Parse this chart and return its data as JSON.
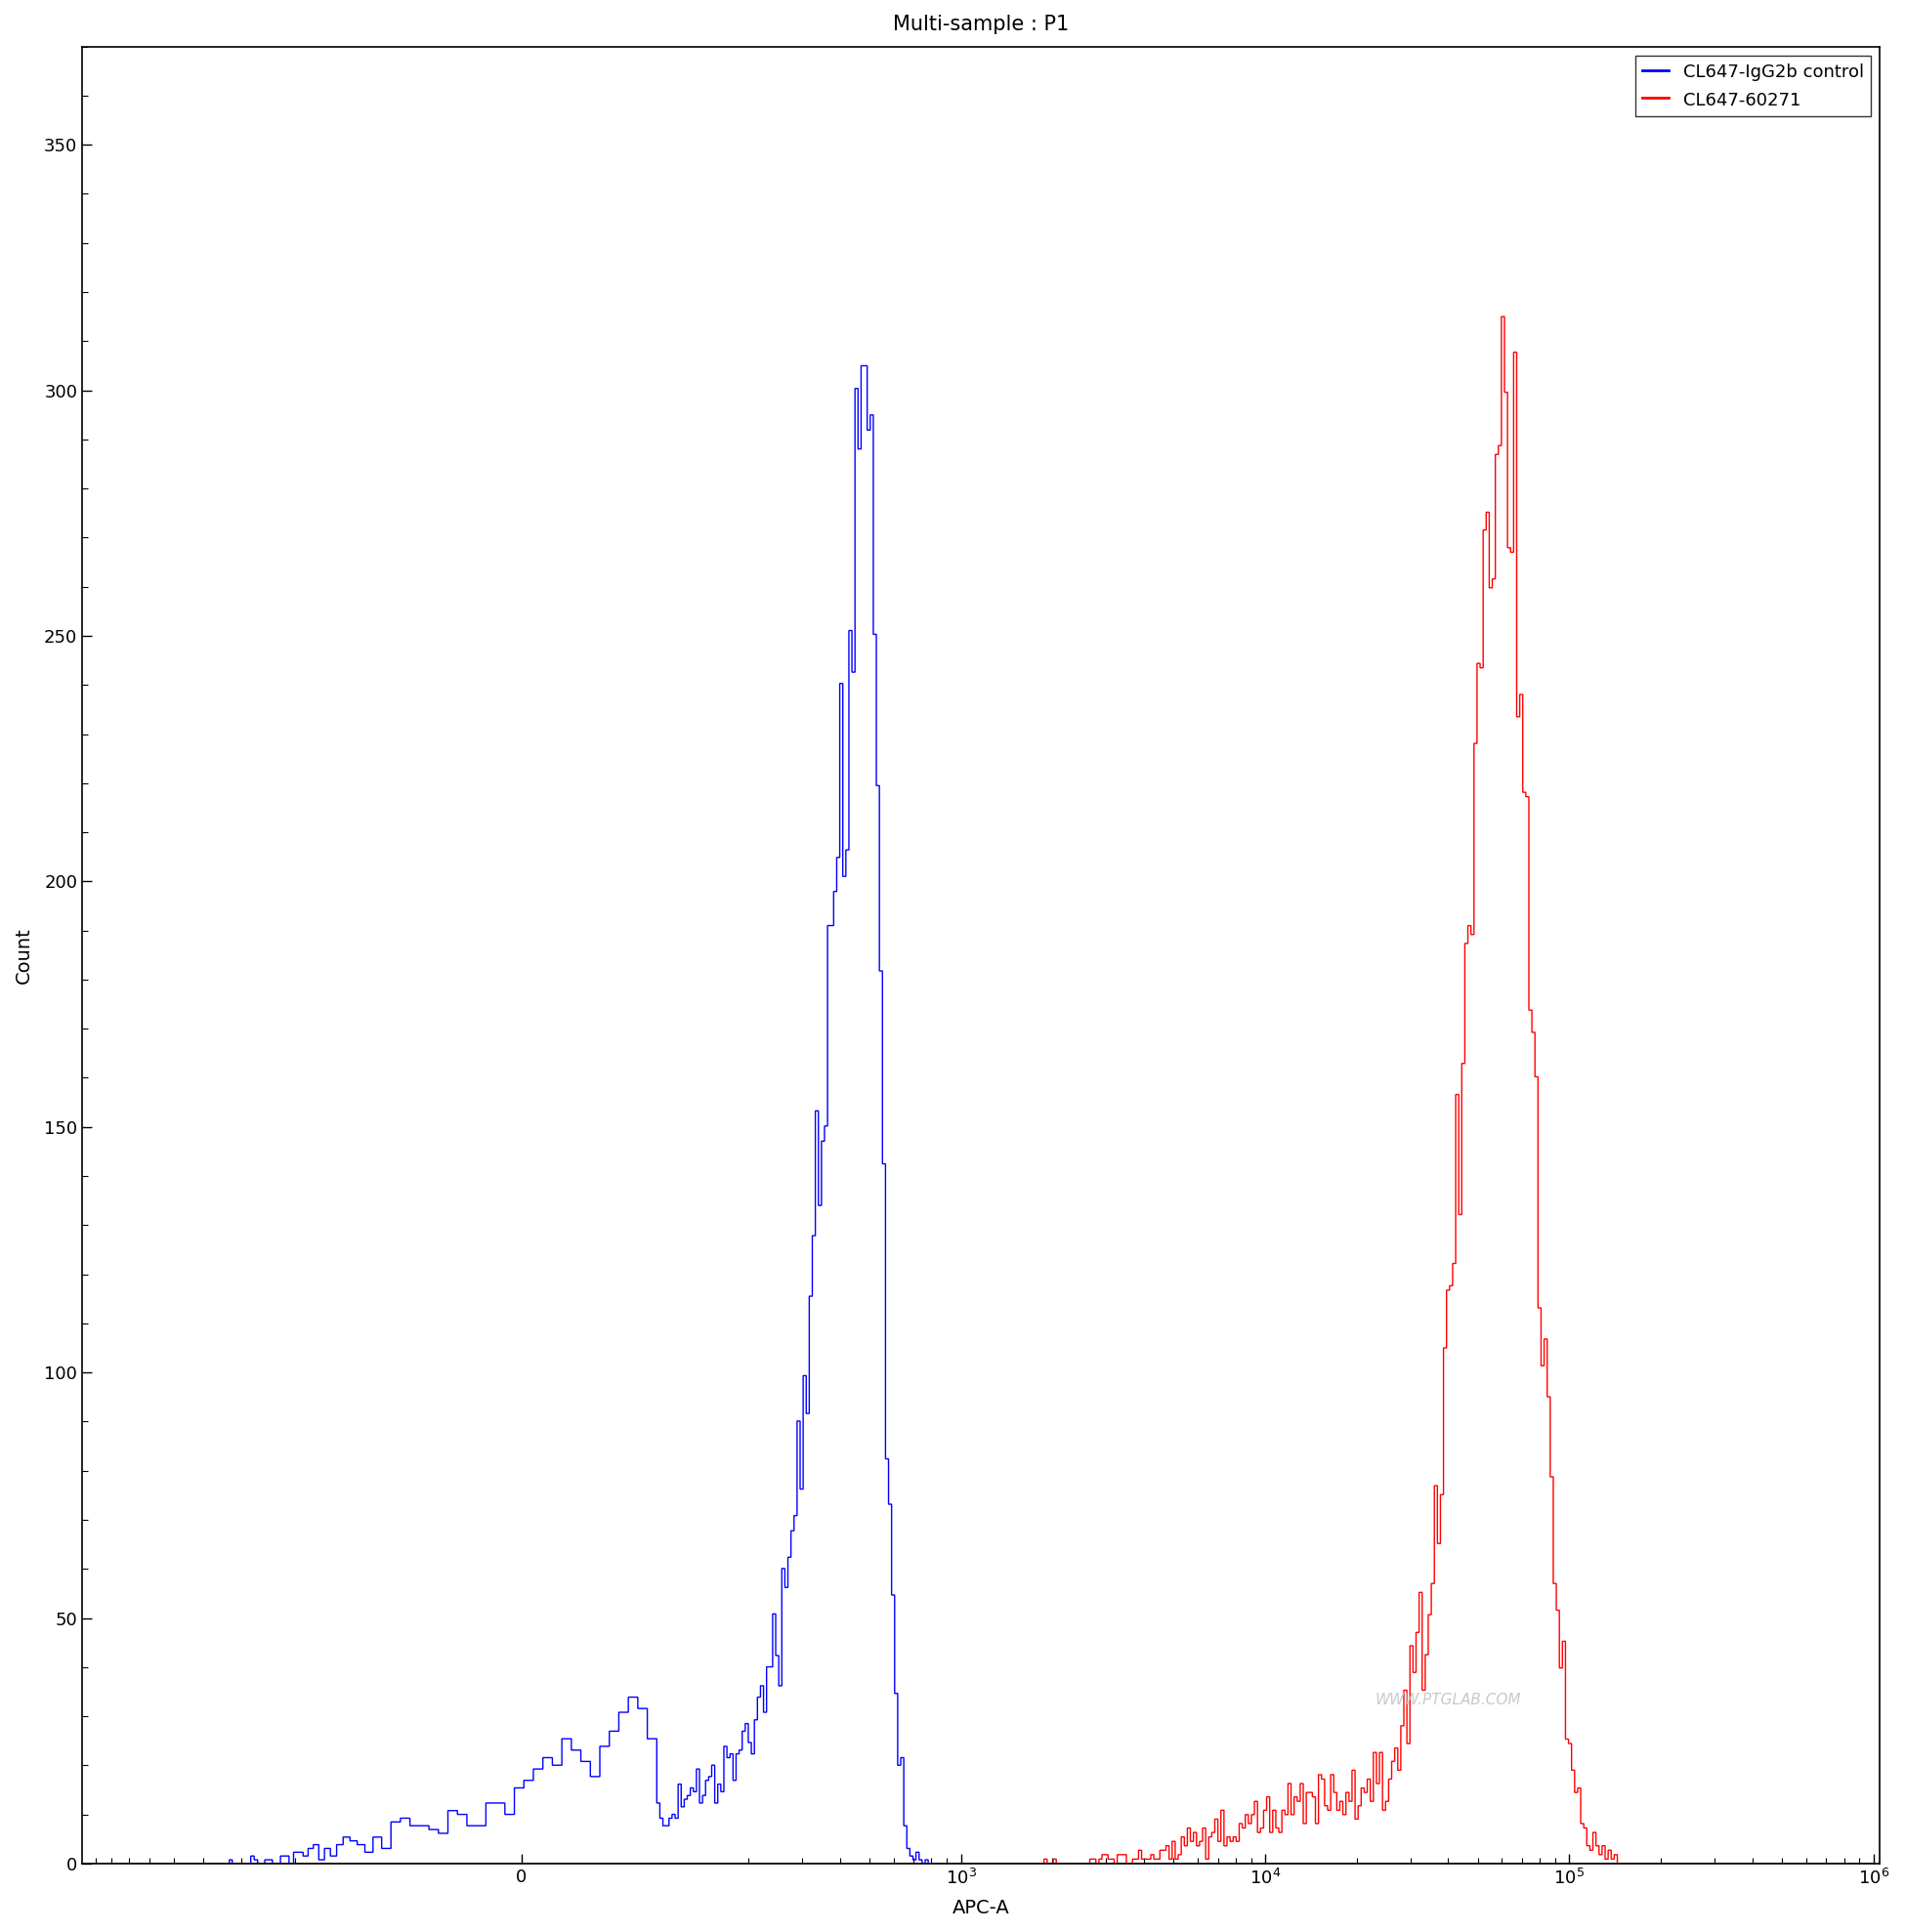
{
  "title": "Multi-sample : P1",
  "xlabel": "APC-A",
  "ylabel": "Count",
  "ylim": [
    0,
    370
  ],
  "yticks": [
    0,
    50,
    100,
    150,
    200,
    250,
    300,
    350
  ],
  "legend_labels": [
    "CL647-IgG2b control",
    "CL647-60271"
  ],
  "legend_colors": [
    "#0000FF",
    "#FF0000"
  ],
  "watermark": "WWW.PTGLAB.COM",
  "title_fontsize": 15,
  "axis_fontsize": 14,
  "tick_fontsize": 13,
  "linthresh": 100,
  "linscale": 0.4
}
